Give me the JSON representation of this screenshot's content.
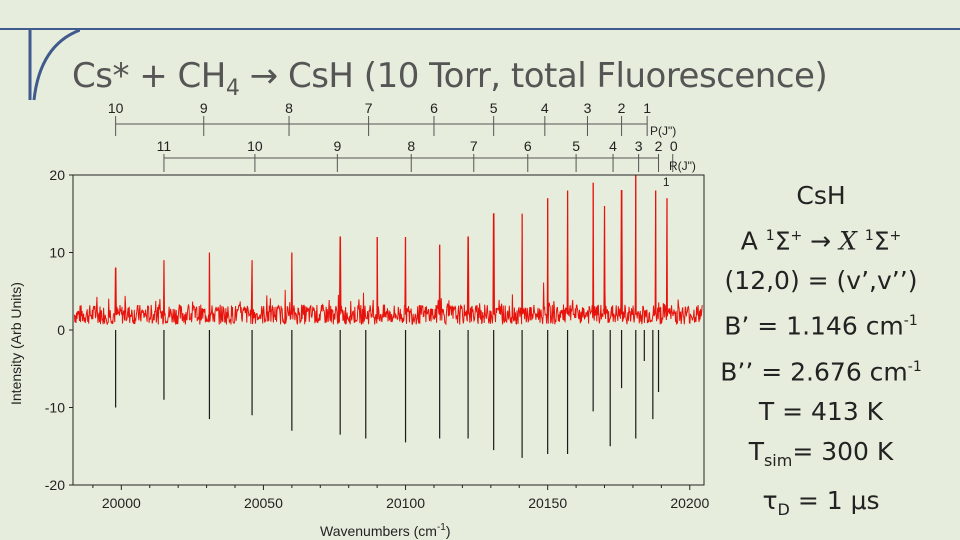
{
  "title": {
    "prefix": "Cs* + CH",
    "sub": "4",
    "suffix": " → CsH (10 Torr, total Fluorescence)"
  },
  "chart_data": {
    "type": "line",
    "xlabel_main": "Wavenumbers (cm",
    "xlabel_sup": "-1",
    "xlabel_end": ")",
    "ylabel": "Intensity (Arb Units)",
    "xlim": [
      19983,
      20205
    ],
    "ylim": [
      -20,
      20
    ],
    "xticks": [
      20000,
      20050,
      20100,
      20150,
      20200
    ],
    "yticks": [
      20,
      10,
      0,
      -10,
      -20
    ],
    "series": [
      {
        "style": "red noisy experimental fluorescence spectrum",
        "color": "#e8120c",
        "baseline": 2,
        "noise": 1.3,
        "peaks": [
          {
            "x": 19998,
            "y": 8
          },
          {
            "x": 20015,
            "y": 9
          },
          {
            "x": 20031,
            "y": 10
          },
          {
            "x": 20046,
            "y": 9
          },
          {
            "x": 20060,
            "y": 10
          },
          {
            "x": 20077,
            "y": 12
          },
          {
            "x": 20090,
            "y": 12
          },
          {
            "x": 20100,
            "y": 12
          },
          {
            "x": 20112,
            "y": 11
          },
          {
            "x": 20122,
            "y": 12
          },
          {
            "x": 20131,
            "y": 15
          },
          {
            "x": 20141,
            "y": 15
          },
          {
            "x": 20150,
            "y": 17
          },
          {
            "x": 20157,
            "y": 18
          },
          {
            "x": 20166,
            "y": 19
          },
          {
            "x": 20170,
            "y": 16
          },
          {
            "x": 20176,
            "y": 18
          },
          {
            "x": 20181,
            "y": 20
          },
          {
            "x": 20188,
            "y": 18
          },
          {
            "x": 20192,
            "y": 17
          }
        ]
      },
      {
        "style": "black inverted simulated stick spectrum",
        "color": "#1a1a1a",
        "sticks": [
          {
            "x": 19998,
            "y": -10
          },
          {
            "x": 20015,
            "y": -9
          },
          {
            "x": 20031,
            "y": -11.5
          },
          {
            "x": 20046,
            "y": -11
          },
          {
            "x": 20060,
            "y": -13
          },
          {
            "x": 20077,
            "y": -13.5
          },
          {
            "x": 20086,
            "y": -14
          },
          {
            "x": 20100,
            "y": -14.5
          },
          {
            "x": 20112,
            "y": -14
          },
          {
            "x": 20122,
            "y": -14
          },
          {
            "x": 20131,
            "y": -15.5
          },
          {
            "x": 20141,
            "y": -16.5
          },
          {
            "x": 20150,
            "y": -16
          },
          {
            "x": 20157,
            "y": -16
          },
          {
            "x": 20166,
            "y": -10.5
          },
          {
            "x": 20172,
            "y": -15
          },
          {
            "x": 20176,
            "y": -7.5
          },
          {
            "x": 20181,
            "y": -14
          },
          {
            "x": 20184,
            "y": -4
          },
          {
            "x": 20187,
            "y": -11.5
          },
          {
            "x": 20189,
            "y": -8
          }
        ]
      }
    ],
    "assignments": {
      "P_label": "P(J\")",
      "R_label": "R(J\")",
      "P": [
        {
          "label": "10",
          "x": 19998
        },
        {
          "label": "9",
          "x": 20029
        },
        {
          "label": "8",
          "x": 20059
        },
        {
          "label": "7",
          "x": 20087
        },
        {
          "label": "6",
          "x": 20110
        },
        {
          "label": "5",
          "x": 20131
        },
        {
          "label": "4",
          "x": 20149
        },
        {
          "label": "3",
          "x": 20164
        },
        {
          "label": "2",
          "x": 20176
        },
        {
          "label": "1",
          "x": 20185
        }
      ],
      "R": [
        {
          "label": "11",
          "x": 20015
        },
        {
          "label": "10",
          "x": 20047
        },
        {
          "label": "9",
          "x": 20076
        },
        {
          "label": "8",
          "x": 20102
        },
        {
          "label": "7",
          "x": 20124
        },
        {
          "label": "6",
          "x": 20143
        },
        {
          "label": "5",
          "x": 20160
        },
        {
          "label": "4",
          "x": 20173
        },
        {
          "label": "3",
          "x": 20182
        },
        {
          "label": "2",
          "x": 20189
        },
        {
          "label": "0",
          "x": 20194
        },
        {
          "label": "1",
          "x": 20191
        }
      ]
    }
  },
  "panel": {
    "molecule": "CsH",
    "transition": {
      "upper": "A ",
      "upper_sup": "1",
      "upper_term": "Σ",
      "upper_sign": "+",
      "arrow": " → ",
      "lower": "X",
      "lower_sup": "1",
      "lower_term": "Σ",
      "lower_sign": "+"
    },
    "band": "(12,0) = (v’,v’’)",
    "b_upper": "B’ = 1.146 cm",
    "b_upper_sup": "-1",
    "b_lower": "B’’ = 2.676 cm",
    "b_lower_sup": "-1",
    "temp": "T = 413 K",
    "tsim_main": "T",
    "tsim_sub": "sim",
    "tsim_val": "= 300 K",
    "tau_main": "τ",
    "tau_sub": "D",
    "tau_val": " = 1 μs"
  },
  "colors": {
    "accent": "#3f5a8c",
    "experiment": "#e8120c",
    "simulation": "#1a1a1a"
  }
}
